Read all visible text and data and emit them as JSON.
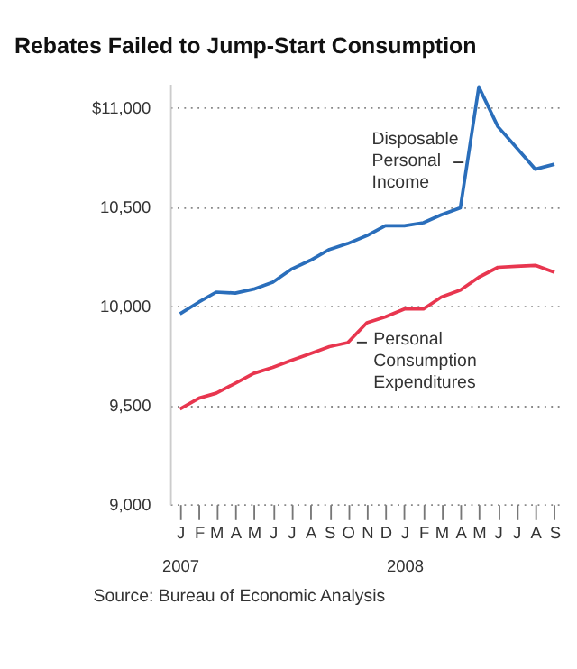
{
  "chart_data": {
    "type": "line",
    "title": "Rebates Failed to Jump-Start Consumption",
    "x": [
      "2007-01",
      "2007-02",
      "2007-03",
      "2007-04",
      "2007-05",
      "2007-06",
      "2007-07",
      "2007-08",
      "2007-09",
      "2007-10",
      "2007-11",
      "2007-12",
      "2008-01",
      "2008-02",
      "2008-03",
      "2008-04",
      "2008-05",
      "2008-06",
      "2008-07",
      "2008-08",
      "2008-09"
    ],
    "xlim": [
      "2006-12-16",
      "2008-09-16"
    ],
    "xticks": [
      {
        "value": "2007-01",
        "label": "J\n2007"
      },
      {
        "value": "2007-02",
        "label": "F"
      },
      {
        "value": "2007-03",
        "label": "M"
      },
      {
        "value": "2007-04",
        "label": "A"
      },
      {
        "value": "2007-05",
        "label": "M"
      },
      {
        "value": "2007-06",
        "label": "J"
      },
      {
        "value": "2007-07",
        "label": "J"
      },
      {
        "value": "2007-08",
        "label": "A"
      },
      {
        "value": "2007-09",
        "label": "S"
      },
      {
        "value": "2007-10",
        "label": "O"
      },
      {
        "value": "2007-11",
        "label": "N"
      },
      {
        "value": "2007-12",
        "label": "D"
      },
      {
        "value": "2008-01",
        "label": "J\n2008"
      },
      {
        "value": "2008-02",
        "label": "F"
      },
      {
        "value": "2008-03",
        "label": "M"
      },
      {
        "value": "2008-04",
        "label": "A"
      },
      {
        "value": "2008-05",
        "label": "M"
      },
      {
        "value": "2008-06",
        "label": "J"
      },
      {
        "value": "2008-07",
        "label": "J"
      },
      {
        "value": "2008-08",
        "label": "A"
      },
      {
        "value": "2008-09",
        "label": "S"
      }
    ],
    "ylim": [
      9000,
      11120
    ],
    "yticks": [
      {
        "value": 9000,
        "label": "9,000"
      },
      {
        "value": 9500,
        "label": "9,500"
      },
      {
        "value": 10000,
        "label": "10,000"
      },
      {
        "value": 10500,
        "label": "10,500"
      },
      {
        "value": 11000,
        "label": "$11,000"
      }
    ],
    "grid": "y",
    "line_style": "solid",
    "marker": "none",
    "series": [
      {
        "name": "Disposable Personal Income",
        "color": "#2a6ebb",
        "values": [
          9960,
          10020,
          10070,
          10065,
          10085,
          10120,
          10185,
          10230,
          10285,
          10315,
          10355,
          10405,
          10405,
          10420,
          10460,
          10495,
          11105,
          10905,
          10800,
          10690,
          10715
        ]
      },
      {
        "name": "Personal Consumption Expenditures",
        "color": "#e8364f",
        "values": [
          9480,
          9535,
          9560,
          9610,
          9660,
          9690,
          9725,
          9760,
          9795,
          9815,
          9915,
          9945,
          9985,
          9985,
          10045,
          10080,
          10145,
          10195,
          10200,
          10205,
          10170
        ]
      }
    ],
    "annotations": [
      "Source: Bureau of Economic Analysis"
    ]
  }
}
